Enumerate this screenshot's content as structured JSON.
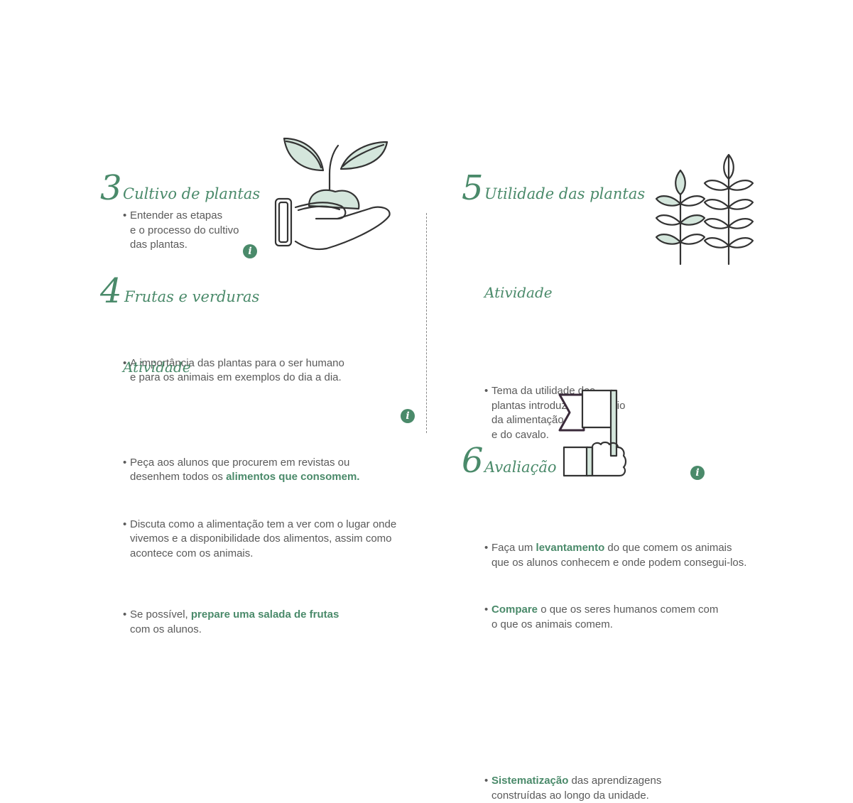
{
  "sections": [
    {
      "num": "3",
      "title": "Cultivo de plantas",
      "bullets": [
        [
          "Entender as etapas",
          "e o processo do cultivo",
          "das plantas."
        ]
      ]
    },
    {
      "num": "4",
      "title": "Frutas e verduras",
      "bullets": [
        [
          "A importância das plantas para o ser humano",
          "e para os animais em exemplos do dia a dia."
        ]
      ]
    },
    {
      "num": "5",
      "title": "Utilidade das plantas",
      "bullets": [
        [
          "Tema da utilidade das",
          "plantas introduzido por meio",
          "da alimentação da girafa",
          "e do cavalo."
        ]
      ]
    },
    {
      "num": "6",
      "title": "Avaliação"
    }
  ],
  "activity_label": "Atividade",
  "s4_activity": {
    "b1": {
      "l1": "Peça aos alunos que procurem em revistas ou",
      "l2_pre": "desenhem todos os ",
      "l2_hl": "alimentos que consomem."
    },
    "b2": [
      "Discuta como a alimentação tem a ver com o lugar onde",
      "vivemos e a disponibilidade dos alimentos, assim como",
      "acontece com os animais."
    ],
    "b3": {
      "l1_pre": "Se possível, ",
      "l1_hl": "prepare uma salada de frutas",
      "l2": "com os alunos."
    }
  },
  "s5_activity": {
    "b1": {
      "pre": "Faça um ",
      "hl": "levantamento",
      "post": " do que comem os animais",
      "l2": "que os alunos conhecem e onde podem consegui-los."
    },
    "b2": {
      "hl": "Compare",
      "post": " o que os seres humanos comem com",
      "l2": "o que os animais comem."
    }
  },
  "s6": {
    "hl": "Sistematização",
    "post": " das aprendizagens",
    "l2": "construídas ao longo da unidade."
  },
  "info_glyph": "i",
  "icons": {
    "s3": "hand-with-sprout-icon",
    "s5": "wheat-stalks-icon",
    "s6": "flag-hand-icon",
    "info": "info-icon"
  },
  "colors": {
    "accent": "#4a8a6a",
    "text": "#5a5a5a",
    "icon_fill": "#d4e6dc",
    "icon_stroke": "#333333"
  }
}
